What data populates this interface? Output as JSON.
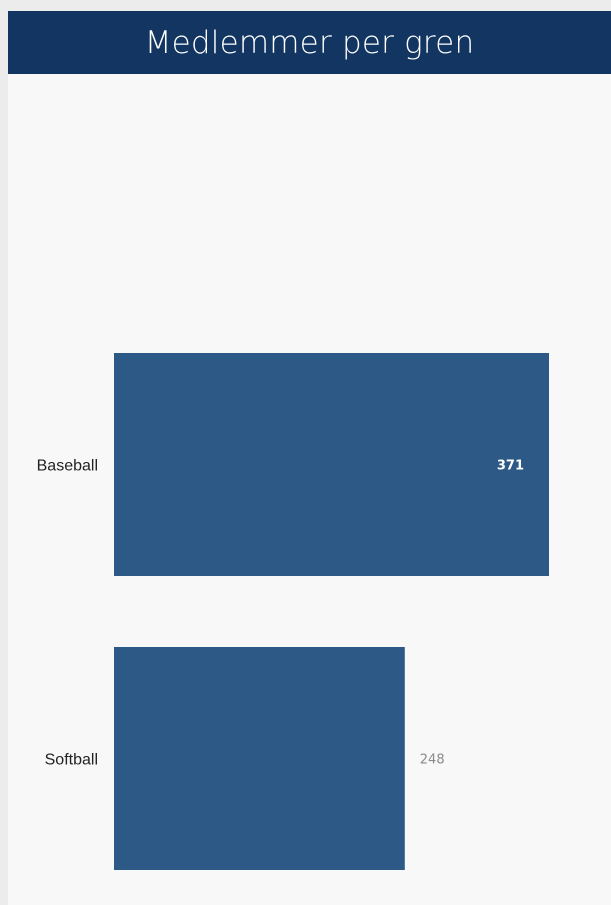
{
  "chart_data": {
    "type": "bar",
    "orientation": "horizontal",
    "title": "Medlemmer per gren",
    "categories": [
      "Baseball",
      "Softball"
    ],
    "values": [
      371,
      248
    ],
    "bar_color": "#2c5985",
    "header_color": "#123561",
    "grid": false
  }
}
